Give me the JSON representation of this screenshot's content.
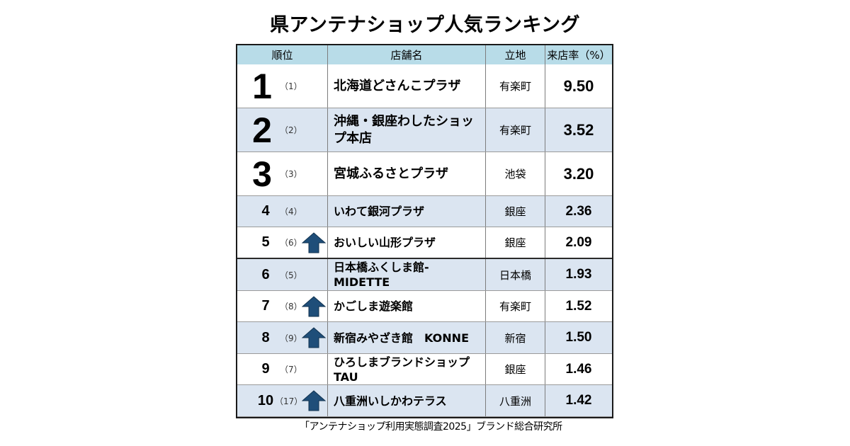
{
  "title": "県アンテナショップ人気ランキング",
  "headers": {
    "rank": "順位",
    "name": "店舗名",
    "location": "立地",
    "rate": "来店率（%）"
  },
  "rows": [
    {
      "rank": "1",
      "prev": "（1）",
      "up": false,
      "name": "北海道どさんこプラザ",
      "location": "有楽町",
      "rate": "9.50"
    },
    {
      "rank": "2",
      "prev": "（2）",
      "up": false,
      "name": "沖縄・銀座わしたショップ本店",
      "location": "有楽町",
      "rate": "3.52"
    },
    {
      "rank": "3",
      "prev": "（3）",
      "up": false,
      "name": "宮城ふるさとプラザ",
      "location": "池袋",
      "rate": "3.20"
    },
    {
      "rank": "4",
      "prev": "（4）",
      "up": false,
      "name": "いわて銀河プラザ",
      "location": "銀座",
      "rate": "2.36"
    },
    {
      "rank": "5",
      "prev": "（6）",
      "up": true,
      "name": "おいしい山形プラザ",
      "location": "銀座",
      "rate": "2.09"
    },
    {
      "rank": "6",
      "prev": "（5）",
      "up": false,
      "name": "日本橋ふくしま館-MIDETTE",
      "location": "日本橋",
      "rate": "1.93"
    },
    {
      "rank": "7",
      "prev": "（8）",
      "up": true,
      "name": "かごしま遊楽館",
      "location": "有楽町",
      "rate": "1.52"
    },
    {
      "rank": "8",
      "prev": "（9）",
      "up": true,
      "name": "新宿みやざき館　KONNE",
      "location": "新宿",
      "rate": "1.50"
    },
    {
      "rank": "9",
      "prev": "（7）",
      "up": false,
      "name": "ひろしまブランドショップTAU",
      "location": "銀座",
      "rate": "1.46"
    },
    {
      "rank": "10",
      "prev": "（17）",
      "up": true,
      "name": "八重洲いしかわテラス",
      "location": "八重洲",
      "rate": "1.42"
    }
  ],
  "icons": {
    "rank_up": "up-arrow-icon"
  },
  "colors": {
    "header_bg": "#b8dce8",
    "row_shade": "#dbe5f1",
    "arrow_fill": "#1f4e79"
  },
  "source": "「アンテナショップ利用実態調査2025」ブランド総合研究所"
}
